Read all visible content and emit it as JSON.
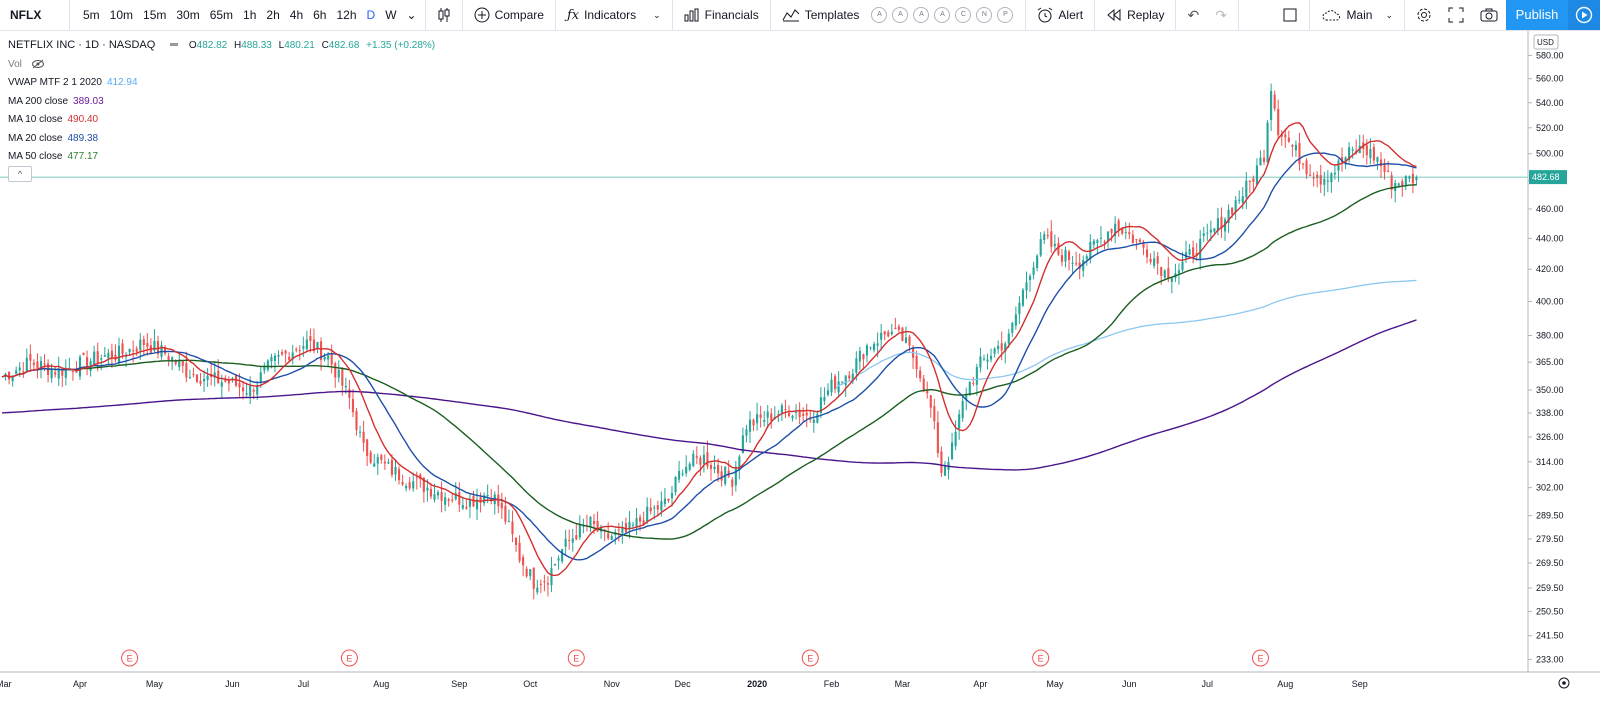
{
  "toolbar": {
    "symbol": "NFLX",
    "intervals": [
      "5m",
      "10m",
      "15m",
      "30m",
      "65m",
      "1h",
      "2h",
      "4h",
      "6h",
      "12h",
      "D",
      "W"
    ],
    "active_interval": "D",
    "compare": "Compare",
    "indicators": "Indicators",
    "financials": "Financials",
    "templates": "Templates",
    "template_circles": [
      "A",
      "A",
      "A",
      "A",
      "C",
      "N",
      "P"
    ],
    "alert": "Alert",
    "replay": "Replay",
    "layout": "Main",
    "publish": "Publish"
  },
  "legend": {
    "title": "NETFLIX INC · 1D · NASDAQ",
    "o_label": "O",
    "o": "482.82",
    "h_label": "H",
    "h": "488.33",
    "l_label": "L",
    "l": "480.21",
    "c_label": "C",
    "c": "482.68",
    "change": "+1.35 (+0.28%)",
    "vol": "Vol",
    "studies": [
      {
        "label": "VWAP MTF 2 1 2020",
        "value": "412.94",
        "color": "#5aaaf0"
      },
      {
        "label": "MA 200 close",
        "value": "389.03",
        "color": "#6a1b9a"
      },
      {
        "label": "MA 10 close",
        "value": "490.40",
        "color": "#d32f2f"
      },
      {
        "label": "MA 20 close",
        "value": "489.38",
        "color": "#1e4fa8"
      },
      {
        "label": "MA 50 close",
        "value": "477.17",
        "color": "#2e7d32"
      }
    ],
    "collapse": "^"
  },
  "colors": {
    "up": "#26a69a",
    "down": "#ef5350",
    "accent": "#2196f3",
    "vwap": "#8cc8f0",
    "ma200": "#4a148c",
    "ma10": "#d32f2f",
    "ma20": "#1e4fa8",
    "ma50": "#1b5e20"
  },
  "chart_data": {
    "type": "line",
    "currency": "USD",
    "last_price": "482.68",
    "scale": "log",
    "ylim": [
      230,
      600
    ],
    "y_ticks": [
      "580.00",
      "560.00",
      "540.00",
      "520.00",
      "500.00",
      "480.00",
      "460.00",
      "440.00",
      "420.00",
      "400.00",
      "380.00",
      "365.00",
      "350.00",
      "338.00",
      "326.00",
      "314.00",
      "302.00",
      "289.50",
      "279.50",
      "269.50",
      "259.50",
      "250.50",
      "241.50",
      "233.00"
    ],
    "x_labels": [
      {
        "label": "Mar",
        "t": 0.5
      },
      {
        "label": "Apr",
        "t": 22
      },
      {
        "label": "May",
        "t": 43
      },
      {
        "label": "Jun",
        "t": 65
      },
      {
        "label": "Jul",
        "t": 85
      },
      {
        "label": "Aug",
        "t": 107
      },
      {
        "label": "Sep",
        "t": 129
      },
      {
        "label": "Oct",
        "t": 149
      },
      {
        "label": "Nov",
        "t": 172
      },
      {
        "label": "Dec",
        "t": 192
      },
      {
        "label": "2020",
        "t": 213
      },
      {
        "label": "Feb",
        "t": 234
      },
      {
        "label": "Mar",
        "t": 254
      },
      {
        "label": "Apr",
        "t": 276
      },
      {
        "label": "May",
        "t": 297
      },
      {
        "label": "Jun",
        "t": 318
      },
      {
        "label": "Jul",
        "t": 340
      },
      {
        "label": "Aug",
        "t": 362
      },
      {
        "label": "Sep",
        "t": 383
      }
    ],
    "earnings_markers": [
      {
        "label": "E",
        "t": 36
      },
      {
        "label": "E",
        "t": 98
      },
      {
        "label": "E",
        "t": 162
      },
      {
        "label": "E",
        "t": 228
      },
      {
        "label": "E",
        "t": 293
      },
      {
        "label": "E",
        "t": 355
      }
    ],
    "price_anchors": [
      [
        0,
        357
      ],
      [
        8,
        365
      ],
      [
        16,
        360
      ],
      [
        22,
        364
      ],
      [
        28,
        368
      ],
      [
        34,
        370
      ],
      [
        40,
        376
      ],
      [
        46,
        370
      ],
      [
        52,
        360
      ],
      [
        58,
        356
      ],
      [
        64,
        354
      ],
      [
        70,
        350
      ],
      [
        76,
        364
      ],
      [
        82,
        372
      ],
      [
        86,
        376
      ],
      [
        92,
        368
      ],
      [
        98,
        345
      ],
      [
        102,
        320
      ],
      [
        108,
        312
      ],
      [
        114,
        306
      ],
      [
        120,
        302
      ],
      [
        126,
        298
      ],
      [
        132,
        296
      ],
      [
        138,
        300
      ],
      [
        142,
        288
      ],
      [
        146,
        272
      ],
      [
        150,
        262
      ],
      [
        154,
        264
      ],
      [
        158,
        275
      ],
      [
        162,
        282
      ],
      [
        166,
        286
      ],
      [
        170,
        280
      ],
      [
        176,
        282
      ],
      [
        182,
        290
      ],
      [
        188,
        296
      ],
      [
        192,
        312
      ],
      [
        198,
        316
      ],
      [
        202,
        310
      ],
      [
        206,
        306
      ],
      [
        210,
        332
      ],
      [
        216,
        336
      ],
      [
        222,
        340
      ],
      [
        228,
        336
      ],
      [
        234,
        352
      ],
      [
        240,
        362
      ],
      [
        244,
        374
      ],
      [
        250,
        382
      ],
      [
        254,
        378
      ],
      [
        258,
        365
      ],
      [
        262,
        340
      ],
      [
        265,
        310
      ],
      [
        268,
        320
      ],
      [
        272,
        350
      ],
      [
        276,
        364
      ],
      [
        280,
        372
      ],
      [
        284,
        378
      ],
      [
        290,
        420
      ],
      [
        294,
        440
      ],
      [
        298,
        430
      ],
      [
        304,
        425
      ],
      [
        310,
        440
      ],
      [
        314,
        450
      ],
      [
        318,
        442
      ],
      [
        324,
        430
      ],
      [
        328,
        418
      ],
      [
        332,
        420
      ],
      [
        336,
        432
      ],
      [
        340,
        440
      ],
      [
        346,
        458
      ],
      [
        352,
        478
      ],
      [
        356,
        500
      ],
      [
        358,
        555
      ],
      [
        360,
        520
      ],
      [
        364,
        505
      ],
      [
        368,
        490
      ],
      [
        372,
        482
      ],
      [
        376,
        488
      ],
      [
        380,
        500
      ],
      [
        384,
        504
      ],
      [
        388,
        496
      ],
      [
        392,
        478
      ],
      [
        396,
        480
      ],
      [
        399,
        482.68
      ]
    ],
    "series": [
      {
        "key": "vwap",
        "start": 235,
        "end": 399,
        "last": 412.94
      },
      {
        "key": "ma200",
        "last": 389.03
      },
      {
        "key": "ma10",
        "last": 490.4
      },
      {
        "key": "ma20",
        "last": 489.38
      },
      {
        "key": "ma50",
        "last": 477.17
      }
    ]
  }
}
